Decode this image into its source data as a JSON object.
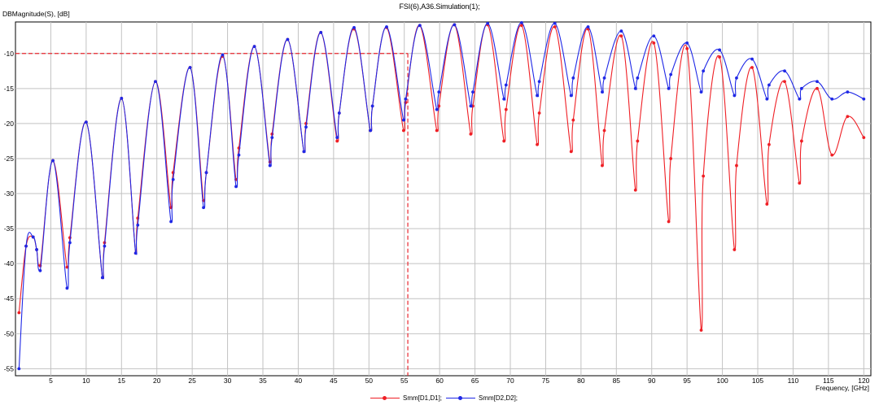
{
  "chart_data": {
    "type": "line",
    "title": "FSI(6),A36.Simulation(1);",
    "ylabel": "DBMagnitude(S), [dB]",
    "xlabel": "Frequency, [GHz]",
    "xlim": [
      0,
      121
    ],
    "ylim": [
      -56,
      -5.5
    ],
    "xticks": [
      5,
      10,
      15,
      20,
      25,
      30,
      35,
      40,
      45,
      50,
      55,
      60,
      65,
      70,
      75,
      80,
      85,
      90,
      95,
      100,
      105,
      110,
      115,
      120
    ],
    "yticks": [
      -10,
      -15,
      -20,
      -25,
      -30,
      -35,
      -40,
      -45,
      -50,
      -55
    ],
    "grid": true,
    "legend_position": "bottom-center",
    "reference_lines": {
      "y": -10,
      "x": 55.5,
      "color": "#e8282f",
      "style": "dashed"
    },
    "series": [
      {
        "name": "Smm[D1,D1];",
        "color": "#ef1f25",
        "x": [
          0.5,
          1.5,
          2.5,
          3.0,
          3.5,
          5.3,
          7.3,
          7.7,
          10.0,
          12.3,
          12.6,
          15.0,
          17.0,
          17.3,
          19.8,
          22.0,
          22.3,
          24.7,
          26.6,
          27.0,
          29.3,
          31.2,
          31.6,
          33.8,
          36.0,
          36.3,
          38.5,
          40.8,
          41.1,
          43.2,
          45.5,
          45.8,
          47.9,
          50.2,
          50.5,
          52.5,
          54.9,
          55.2,
          57.2,
          59.6,
          59.9,
          62.1,
          64.4,
          64.7,
          66.8,
          69.1,
          69.4,
          71.6,
          73.8,
          74.1,
          76.3,
          78.6,
          78.9,
          81.0,
          83.0,
          83.3,
          85.7,
          87.7,
          88.0,
          90.3,
          92.4,
          92.7,
          95.0,
          97.0,
          97.3,
          99.6,
          101.7,
          102.0,
          104.2,
          106.3,
          106.6,
          108.8,
          110.9,
          111.2,
          113.4,
          115.5,
          117.7,
          120.0
        ],
        "y": [
          -47,
          -37.5,
          -36.2,
          -38.0,
          -40.3,
          -25.3,
          -40.5,
          -36.3,
          -19.8,
          -42.0,
          -37.0,
          -16.4,
          -38.5,
          -33.5,
          -14.0,
          -32.0,
          -27.0,
          -12.0,
          -31.0,
          -27.0,
          -10.4,
          -28.0,
          -23.5,
          -9.0,
          -25.5,
          -21.5,
          -8.0,
          -24.0,
          -20.0,
          -7.0,
          -22.5,
          -18.5,
          -6.5,
          -21.0,
          -17.5,
          -6.3,
          -21.0,
          -17.0,
          -6.0,
          -21.0,
          -17.5,
          -5.9,
          -21.5,
          -17.5,
          -5.9,
          -22.5,
          -18.0,
          -6.0,
          -23.0,
          -18.5,
          -6.2,
          -24.0,
          -19.5,
          -6.5,
          -26.0,
          -21.0,
          -7.5,
          -29.5,
          -22.5,
          -8.5,
          -34.0,
          -25.0,
          -9.3,
          -49.5,
          -27.5,
          -10.5,
          -38.0,
          -26.0,
          -12.0,
          -31.5,
          -23.0,
          -14.0,
          -28.5,
          -22.5,
          -15.0,
          -24.5,
          -19.0,
          -22.0
        ]
      },
      {
        "name": "Smm[D2,D2];",
        "color": "#1f28e6",
        "x": [
          0.5,
          1.5,
          2.5,
          3.0,
          3.5,
          5.3,
          7.3,
          7.7,
          10.0,
          12.3,
          12.6,
          15.0,
          17.0,
          17.3,
          19.8,
          22.0,
          22.3,
          24.7,
          26.6,
          27.0,
          29.3,
          31.2,
          31.6,
          33.8,
          36.0,
          36.3,
          38.5,
          40.8,
          41.1,
          43.2,
          45.5,
          45.8,
          47.9,
          50.2,
          50.5,
          52.5,
          54.9,
          55.2,
          57.2,
          59.6,
          59.9,
          62.1,
          64.4,
          64.7,
          66.8,
          69.1,
          69.4,
          71.6,
          73.8,
          74.1,
          76.3,
          78.6,
          78.9,
          81.0,
          83.0,
          83.3,
          85.7,
          87.7,
          88.0,
          90.3,
          92.4,
          92.7,
          95.0,
          97.0,
          97.3,
          99.6,
          101.7,
          102.0,
          104.2,
          106.3,
          106.6,
          108.8,
          110.9,
          111.2,
          113.4,
          115.5,
          117.7,
          120.0
        ],
        "y": [
          -55.0,
          -37.5,
          -36.2,
          -38.0,
          -41.0,
          -25.3,
          -43.5,
          -37.0,
          -19.8,
          -42.0,
          -37.5,
          -16.4,
          -38.5,
          -34.5,
          -14.0,
          -34.0,
          -28.0,
          -12.0,
          -32.0,
          -27.0,
          -10.2,
          -29.0,
          -24.5,
          -9.0,
          -26.0,
          -22.0,
          -8.0,
          -24.0,
          -20.5,
          -7.0,
          -22.0,
          -18.5,
          -6.3,
          -21.0,
          -17.5,
          -6.2,
          -19.5,
          -16.5,
          -6.0,
          -18.0,
          -15.5,
          -5.9,
          -17.5,
          -15.5,
          -5.7,
          -16.5,
          -14.5,
          -5.6,
          -16.0,
          -14.0,
          -5.7,
          -16.0,
          -13.5,
          -6.2,
          -15.5,
          -13.5,
          -6.8,
          -15.0,
          -13.5,
          -7.5,
          -15.0,
          -13.0,
          -8.5,
          -15.5,
          -12.5,
          -9.5,
          -16.0,
          -13.5,
          -10.8,
          -16.5,
          -14.5,
          -12.5,
          -16.5,
          -15.0,
          -14.0,
          -16.5,
          -15.5,
          -16.5
        ]
      }
    ]
  }
}
